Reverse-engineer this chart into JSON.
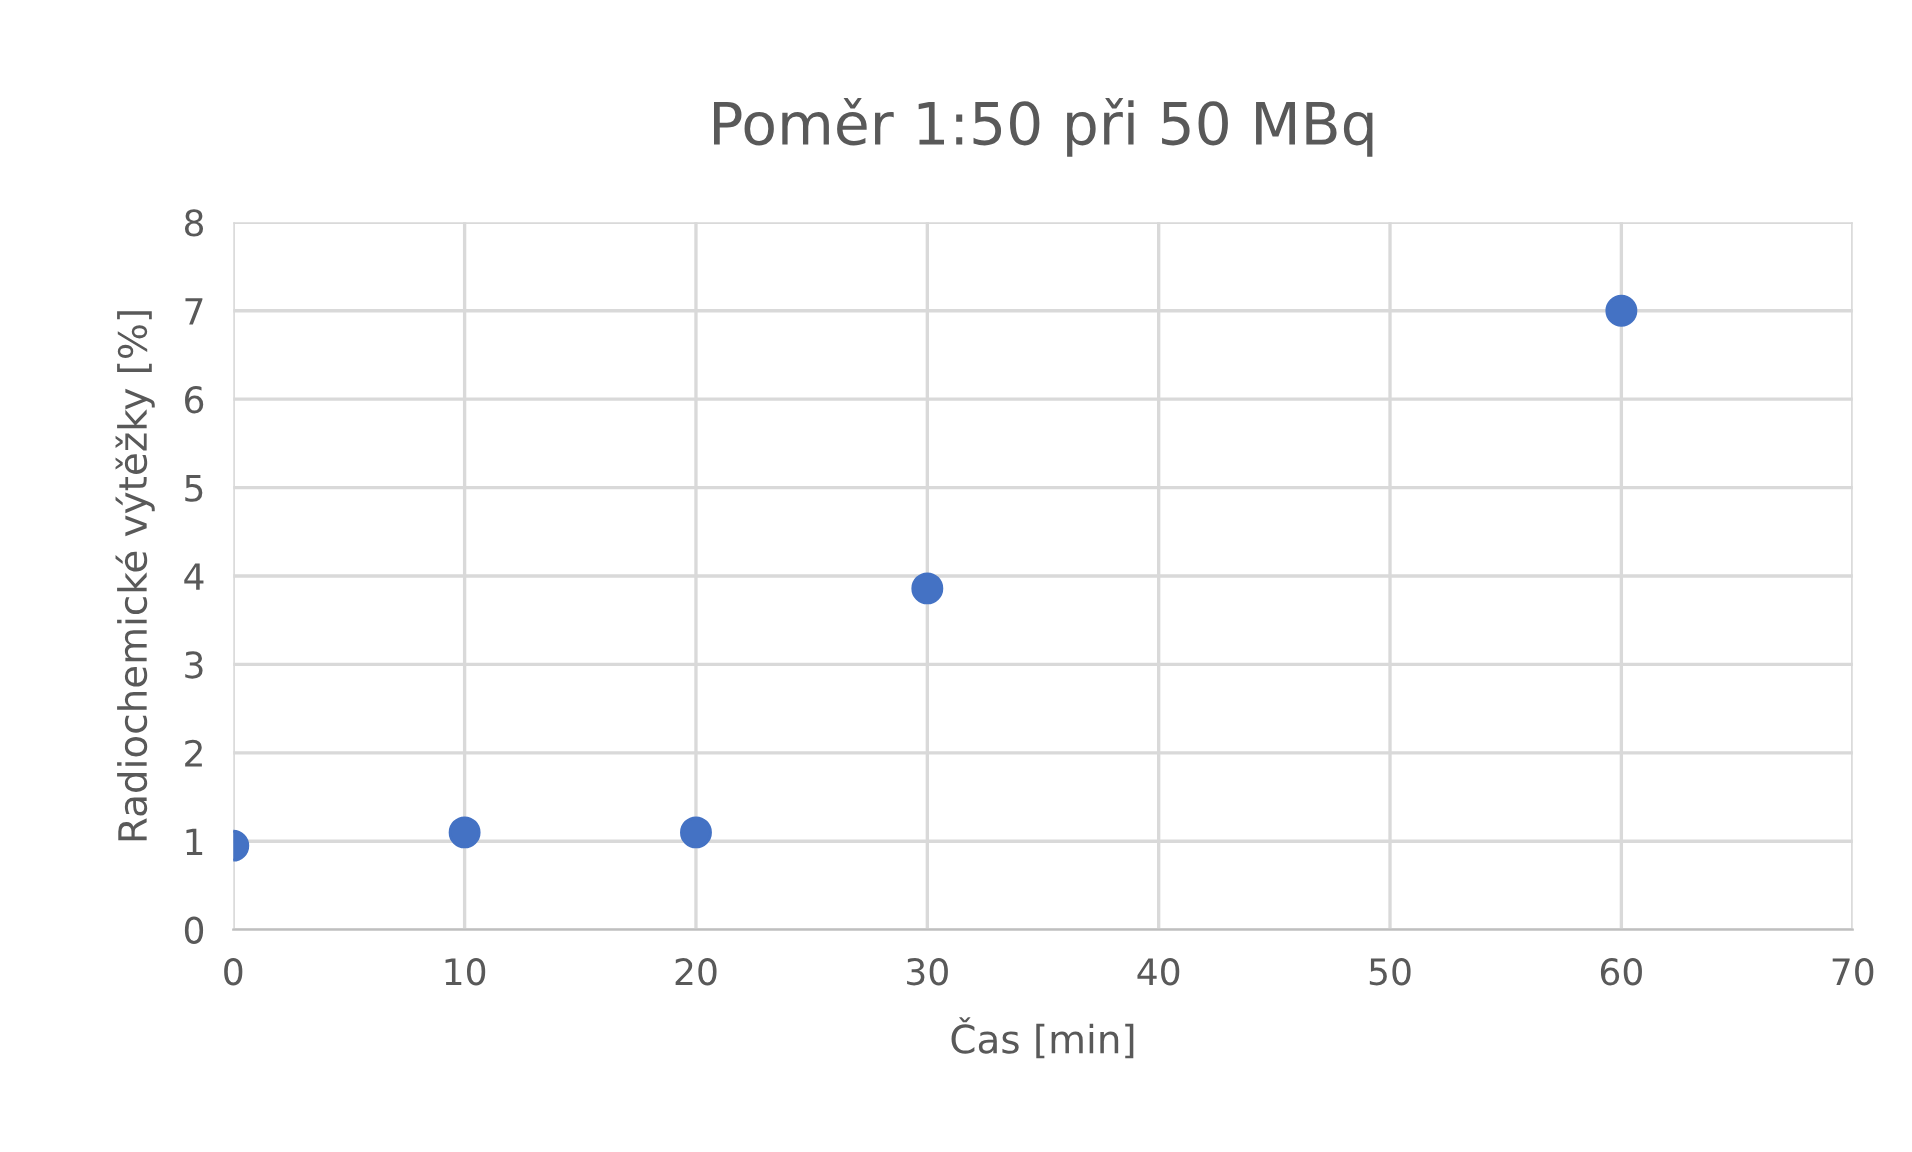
{
  "chart_data": {
    "type": "scatter",
    "title": "Poměr 1:50 při 50 MBq",
    "xlabel": "Čas [min]",
    "ylabel": "Radiochemické výtěžky [%]",
    "x": [
      0,
      10,
      20,
      30,
      60
    ],
    "series": [
      {
        "color": "#4472c4",
        "values": [
          0.95,
          1.1,
          1.1,
          3.86,
          7.0
        ]
      }
    ],
    "xlim": [
      0,
      70
    ],
    "xticks": [
      0,
      10,
      20,
      30,
      40,
      50,
      60,
      70
    ],
    "ylim": [
      0,
      8
    ],
    "yticks": [
      0,
      1,
      2,
      3,
      4,
      5,
      6,
      7,
      8
    ],
    "grid": true,
    "marker": "circle"
  }
}
